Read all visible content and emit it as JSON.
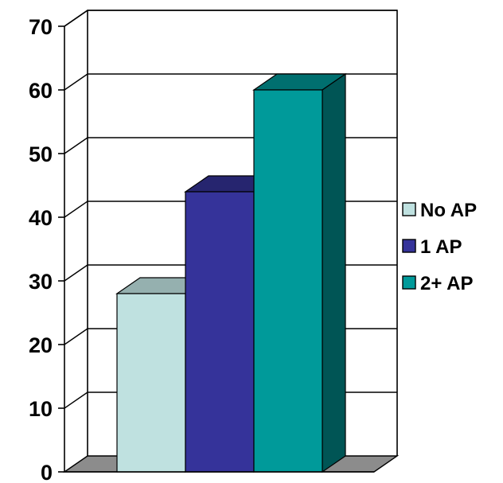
{
  "chart_data": {
    "type": "bar",
    "style": "3d-clustered",
    "title": "",
    "xlabel": "",
    "ylabel": "",
    "ylim": [
      0,
      70
    ],
    "yticks": [
      "0",
      "10",
      "20",
      "30",
      "40",
      "50",
      "60",
      "70"
    ],
    "grid": true,
    "legend_position": "right",
    "series": [
      {
        "name": "No AP",
        "value": 28,
        "color": "#bfe1e0"
      },
      {
        "name": "1 AP",
        "value": 44,
        "color": "#35339a"
      },
      {
        "name": "2+ AP",
        "value": 60,
        "color": "#009a9a"
      }
    ]
  }
}
